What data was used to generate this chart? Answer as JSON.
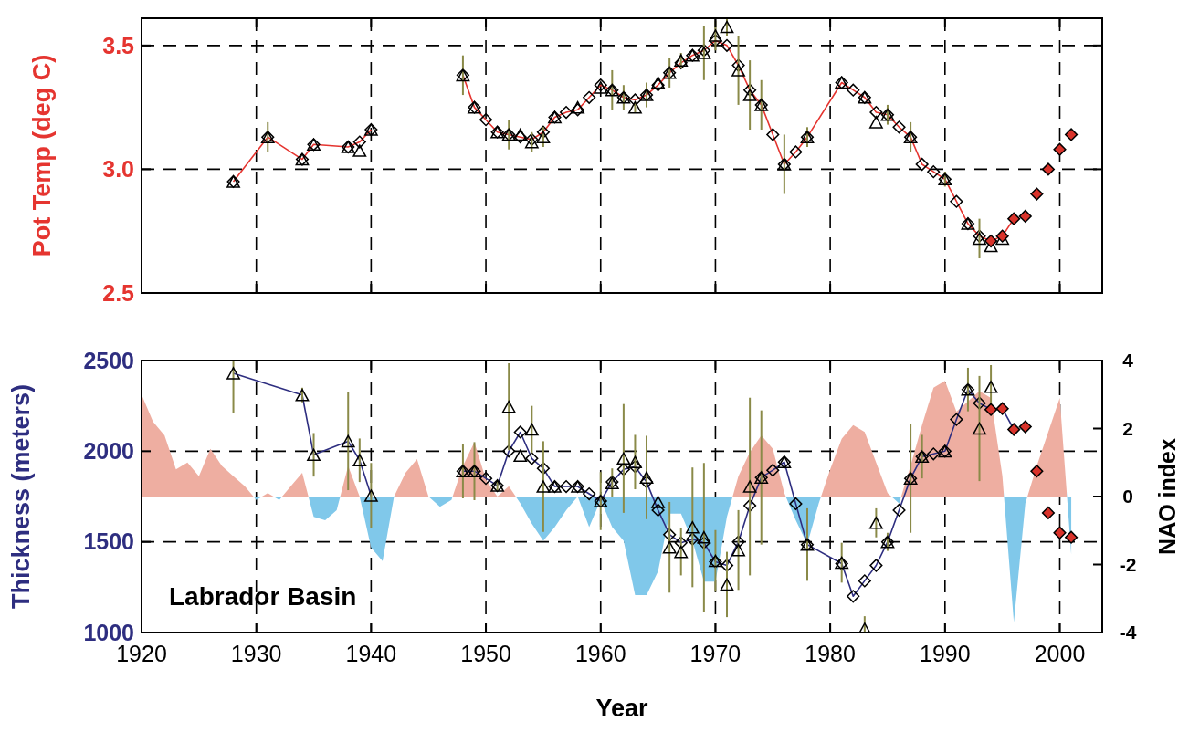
{
  "chart_data": [
    {
      "type": "line",
      "ylabel": "Pot Temp (deg C)",
      "xlim": [
        1920,
        2003.7
      ],
      "xticks": [
        1920,
        1930,
        1940,
        1950,
        1960,
        1970,
        1980,
        1990,
        2000
      ],
      "ylim": [
        2.5,
        3.61
      ],
      "yticks": [
        {
          "value": 2.5,
          "label": "2.5"
        },
        {
          "value": 3.0,
          "label": "3.0"
        },
        {
          "value": 3.5,
          "label": "3.5"
        }
      ],
      "grid": true,
      "tick_labels": "y",
      "series": [
        {
          "color": "#e53530",
          "marker": "none",
          "x": [
            1928,
            1931,
            1934,
            1935,
            1938,
            1939,
            1940,
            1944,
            1948,
            1949,
            1950,
            1951,
            1952,
            1953,
            1954,
            1955,
            1956,
            1957,
            1958,
            1959,
            1960,
            1961,
            1962,
            1963,
            1964,
            1965,
            1966,
            1967,
            1968,
            1969,
            1970,
            1971,
            1972,
            1973,
            1974,
            1975,
            1976,
            1977,
            1978,
            1981,
            1982,
            1983,
            1984,
            1985,
            1986,
            1987,
            1988,
            1989,
            1990,
            1991,
            1992,
            1993,
            1994,
            1995,
            1996
          ],
          "values": [
            2.95,
            3.13,
            3.04,
            3.1,
            3.09,
            3.11,
            3.16,
            null,
            3.38,
            3.25,
            3.2,
            3.15,
            3.14,
            3.13,
            3.12,
            3.15,
            3.21,
            3.23,
            3.24,
            3.29,
            3.34,
            3.32,
            3.29,
            3.28,
            3.3,
            3.34,
            3.39,
            3.43,
            3.46,
            3.48,
            3.52,
            3.5,
            3.42,
            3.32,
            3.26,
            3.14,
            3.02,
            3.07,
            3.13,
            3.35,
            3.32,
            3.29,
            3.23,
            3.22,
            3.17,
            3.13,
            3.02,
            2.99,
            2.96,
            2.87,
            2.78,
            2.73,
            2.71,
            2.73,
            2.8
          ]
        },
        {
          "type": "scatter",
          "color": "#000000",
          "marker": "diamond",
          "x": [
            1928,
            1931,
            1934,
            1935,
            1938,
            1939,
            1940,
            1948,
            1949,
            1950,
            1951,
            1952,
            1953,
            1954,
            1955,
            1956,
            1957,
            1958,
            1959,
            1960,
            1961,
            1962,
            1963,
            1964,
            1965,
            1966,
            1967,
            1968,
            1969,
            1970,
            1971,
            1972,
            1973,
            1974,
            1975,
            1976,
            1977,
            1978,
            1981,
            1982,
            1983,
            1984,
            1985,
            1986,
            1987,
            1988,
            1989,
            1990,
            1991,
            1992,
            1993
          ],
          "values": [
            2.95,
            3.13,
            3.04,
            3.1,
            3.09,
            3.11,
            3.16,
            3.38,
            3.25,
            3.2,
            3.15,
            3.14,
            3.13,
            3.12,
            3.15,
            3.21,
            3.23,
            3.24,
            3.29,
            3.34,
            3.32,
            3.29,
            3.28,
            3.3,
            3.34,
            3.39,
            3.43,
            3.46,
            3.48,
            3.52,
            3.5,
            3.42,
            3.32,
            3.26,
            3.14,
            3.02,
            3.07,
            3.13,
            3.35,
            3.32,
            3.29,
            3.23,
            3.22,
            3.17,
            3.13,
            3.02,
            2.99,
            2.96,
            2.87,
            2.78,
            2.73
          ]
        },
        {
          "type": "scatter",
          "color": "#000000",
          "marker": "triangle",
          "x": [
            1928,
            1931,
            1934,
            1935,
            1938,
            1939,
            1940,
            1948,
            1949,
            1951,
            1952,
            1953,
            1954,
            1955,
            1956,
            1958,
            1960,
            1961,
            1962,
            1963,
            1964,
            1965,
            1966,
            1967,
            1968,
            1969,
            1970,
            1971,
            1972,
            1973,
            1974,
            1976,
            1978,
            1981,
            1983,
            1984,
            1985,
            1987,
            1990,
            1992,
            1993,
            1994,
            1995
          ],
          "values": [
            2.95,
            3.13,
            3.04,
            3.1,
            3.09,
            3.075,
            3.16,
            3.38,
            3.25,
            3.15,
            3.14,
            3.14,
            3.11,
            3.13,
            3.21,
            3.25,
            3.33,
            3.32,
            3.29,
            3.25,
            3.3,
            3.35,
            3.39,
            3.44,
            3.46,
            3.47,
            3.54,
            3.575,
            3.4,
            3.3,
            3.26,
            3.02,
            3.13,
            3.35,
            3.29,
            3.19,
            3.22,
            3.13,
            2.96,
            2.78,
            2.72,
            2.69,
            2.72
          ],
          "errors": [
            null,
            0.06,
            null,
            null,
            null,
            null,
            null,
            0.08,
            null,
            null,
            0.06,
            null,
            0.04,
            0.04,
            null,
            null,
            null,
            0.08,
            0.05,
            0.02,
            0.05,
            null,
            0.06,
            0.03,
            null,
            0.11,
            0.06,
            0.035,
            0.14,
            0.14,
            0.1,
            0.12,
            0.04,
            null,
            null,
            null,
            0.04,
            0.06,
            0.03,
            null,
            0.08,
            null,
            null
          ]
        },
        {
          "type": "scatter",
          "color": "#d9332b",
          "marker": "diamond",
          "x": [
            1994,
            1995,
            1996,
            1997,
            1998,
            1999,
            2000,
            2001
          ],
          "values": [
            2.71,
            2.73,
            2.8,
            2.81,
            2.9,
            3.0,
            3.08,
            3.14
          ]
        }
      ]
    },
    {
      "type": "line",
      "xlabel": "Year",
      "ylabel": "Thickness (meters)",
      "y2label": "NAO index",
      "annotations": [
        "Labrador Basin"
      ],
      "xlim": [
        1920,
        2003.7
      ],
      "xticks": [
        1920,
        1930,
        1940,
        1950,
        1960,
        1970,
        1980,
        1990,
        2000
      ],
      "ylim": [
        1000,
        2500
      ],
      "yticks": [
        1000,
        1500,
        2000,
        2500
      ],
      "y2lim": [
        -4,
        4
      ],
      "y2ticks": [
        -4,
        -2,
        0,
        2,
        4
      ],
      "grid": true,
      "series": [
        {
          "type": "area",
          "axis": "y2",
          "colors": [
            "#eeaea1",
            "#eeaea1",
            "#eeaea1",
            "#eeaea1",
            "#eeaea1",
            "#eeaea1",
            "#eeaea1",
            "#eeaea1",
            "#eeaea1",
            "#eeaea1",
            "#80c8ea",
            "#eeaea1",
            "#80c8ea",
            "#eeaea1",
            "#eeaea1",
            "#80c8ea",
            "#80c8ea",
            "#80c8ea",
            "#eeaea1",
            "#eeaea1",
            "#80c8ea",
            "#80c8ea",
            "#eeaea1",
            "#eeaea1",
            "#eeaea1",
            "#eeaea1",
            "#80c8ea",
            "#80c8ea",
            "#eeaea1",
            "#eeaea1",
            "#eeaea1",
            "#eeaea1",
            "#eeaea1",
            "#80c8ea",
            "#80c8ea",
            "#80c8ea",
            "#80c8ea",
            "#80c8ea",
            "#eeaea1",
            "#80c8ea",
            "#80c8ea",
            "#80c8ea",
            "#80c8ea",
            "#80c8ea",
            "#80c8ea",
            "#80c8ea",
            "#80c8ea",
            "#80c8ea",
            "#80c8ea",
            "#80c8ea",
            "#80c8ea",
            "#80c8ea",
            "#eeaea1",
            "#eeaea1",
            "#eeaea1",
            "#eeaea1",
            "#eeaea1",
            "#80c8ea",
            "#80c8ea",
            "#80c8ea",
            "#eeaea1",
            "#eeaea1",
            "#eeaea1",
            "#eeaea1",
            "#eeaea1",
            "#eeaea1",
            "#80c8ea",
            "#eeaea1",
            "#eeaea1",
            "#eeaea1",
            "#eeaea1",
            "#eeaea1",
            "#eeaea1",
            "#eeaea1",
            "#eeaea1",
            "#eeaea1",
            "#80c8ea",
            "#80c8ea",
            "#eeaea1",
            "#eeaea1",
            "#eeaea1",
            "#80c8ea"
          ],
          "x": [
            1920,
            1921,
            1922,
            1923,
            1924,
            1925,
            1926,
            1927,
            1928,
            1929,
            1930,
            1931,
            1932,
            1933,
            1934,
            1935,
            1936,
            1937,
            1938,
            1939,
            1940,
            1941,
            1942,
            1943,
            1944,
            1945,
            1946,
            1947,
            1948,
            1949,
            1950,
            1951,
            1952,
            1953,
            1954,
            1955,
            1956,
            1957,
            1958,
            1959,
            1960,
            1961,
            1962,
            1963,
            1964,
            1965,
            1966,
            1967,
            1968,
            1969,
            1970,
            1971,
            1972,
            1973,
            1974,
            1975,
            1976,
            1977,
            1978,
            1979,
            1980,
            1981,
            1982,
            1983,
            1984,
            1985,
            1986,
            1987,
            1988,
            1989,
            1990,
            1991,
            1992,
            1993,
            1994,
            1995,
            1996,
            1997,
            1998,
            1999,
            2000,
            2001
          ],
          "values": [
            3.0,
            2.2,
            1.8,
            0.8,
            1.0,
            0.6,
            1.4,
            0.9,
            0.6,
            0.3,
            -0.1,
            0.1,
            -0.1,
            0.3,
            0.7,
            -0.6,
            -0.7,
            -0.4,
            0.9,
            0,
            -1.5,
            -1.9,
            0,
            0.7,
            1.1,
            0,
            -0.3,
            -0.1,
            0.9,
            1.6,
            0.5,
            0,
            0.3,
            -0.2,
            -0.8,
            -1.3,
            -0.9,
            -0.4,
            0,
            -0.9,
            -0.1,
            -0.9,
            -1.3,
            -2.9,
            -2.9,
            -2.2,
            -0.5,
            -0.5,
            -1.3,
            -2.5,
            -2.5,
            -0.6,
            0.6,
            1.3,
            1.8,
            1.4,
            0.1,
            -0.7,
            -1.4,
            -0.2,
            0.8,
            1.7,
            2.1,
            1.9,
            1.0,
            0.1,
            -0.2,
            0.9,
            2.1,
            3.2,
            3.4,
            2.5,
            2.8,
            3.1,
            2.9,
            0.6,
            -3.7,
            -0.2,
            0.9,
            1.9,
            2.9,
            -1.7
          ]
        },
        {
          "color": "#2e2e80",
          "marker": "none",
          "x": [
            1928,
            1934,
            1935,
            1938,
            1939,
            1940,
            1944,
            1948,
            1949,
            1950,
            1951,
            1952,
            1953,
            1954,
            1955,
            1956,
            1957,
            1958,
            1959,
            1960,
            1961,
            1962,
            1963,
            1964,
            1965,
            1966,
            1967,
            1968,
            1969,
            1970,
            1971,
            1972,
            1973,
            1974,
            1975,
            1976,
            1977,
            1978,
            1981,
            1982,
            1983,
            1984,
            1985,
            1986,
            1987,
            1988,
            1989,
            1990,
            1991,
            1992,
            1993,
            1994,
            1995,
            1996
          ],
          "values": [
            2430,
            2310,
            1980,
            2055,
            1950,
            1755,
            null,
            1890,
            1890,
            1850,
            1810,
            2000,
            2105,
            1960,
            1905,
            1805,
            1805,
            1805,
            1765,
            1725,
            1830,
            1900,
            1915,
            1830,
            1675,
            1540,
            1495,
            1515,
            1495,
            1390,
            1370,
            1500,
            1700,
            1855,
            1895,
            1940,
            1710,
            1485,
            1380,
            1200,
            1285,
            1370,
            1500,
            1675,
            1850,
            1970,
            1985,
            2000,
            2175,
            2340,
            2265,
            2230,
            2235,
            2120
          ]
        },
        {
          "type": "scatter",
          "color": "#000000",
          "marker": "diamond",
          "x": [
            1948,
            1949,
            1950,
            1951,
            1952,
            1953,
            1954,
            1955,
            1956,
            1957,
            1958,
            1959,
            1960,
            1961,
            1962,
            1963,
            1964,
            1965,
            1966,
            1967,
            1968,
            1969,
            1970,
            1971,
            1972,
            1973,
            1974,
            1975,
            1976,
            1977,
            1978,
            1981,
            1982,
            1983,
            1984,
            1985,
            1986,
            1987,
            1988,
            1989,
            1990,
            1991,
            1992,
            1993
          ],
          "values": [
            1890,
            1890,
            1850,
            1810,
            2000,
            2105,
            1960,
            1905,
            1805,
            1805,
            1805,
            1765,
            1725,
            1830,
            1900,
            1915,
            1830,
            1675,
            1540,
            1495,
            1515,
            1495,
            1390,
            1370,
            1500,
            1700,
            1855,
            1895,
            1940,
            1710,
            1485,
            1380,
            1200,
            1285,
            1370,
            1500,
            1675,
            1850,
            1970,
            1985,
            2000,
            2175,
            2340,
            2265
          ]
        },
        {
          "type": "scatter",
          "color": "#000000",
          "marker": "triangle",
          "x": [
            1928,
            1934,
            1935,
            1938,
            1939,
            1940,
            1948,
            1949,
            1951,
            1952,
            1953,
            1954,
            1955,
            1956,
            1958,
            1960,
            1961,
            1962,
            1963,
            1964,
            1965,
            1966,
            1967,
            1968,
            1969,
            1970,
            1971,
            1972,
            1973,
            1974,
            1976,
            1978,
            1981,
            1983,
            1984,
            1985,
            1987,
            1988,
            1990,
            1992,
            1993,
            1994
          ],
          "values": [
            2430,
            2310,
            1980,
            2055,
            1950,
            1755,
            1890,
            1890,
            1810,
            2245,
            1975,
            2120,
            1805,
            1805,
            1805,
            1725,
            1825,
            1960,
            1940,
            1855,
            1720,
            1470,
            1445,
            1580,
            1525,
            1395,
            1265,
            1455,
            1805,
            1855,
            1940,
            1485,
            1385,
            1020,
            1605,
            1500,
            1850,
            1970,
            2000,
            2340,
            2125,
            2355
          ],
          "errors": [
            [
              2210,
              2500
            ],
            40,
            120,
            270,
            120,
            180,
            150,
            160,
            30,
            240,
            null,
            130,
            250,
            null,
            null,
            160,
            80,
            300,
            150,
            230,
            null,
            250,
            130,
            330,
            410,
            170,
            180,
            220,
            490,
            370,
            null,
            200,
            110,
            [
              1000,
              1090
            ],
            80,
            50,
            300,
            120,
            null,
            120,
            290,
            120
          ]
        },
        {
          "type": "scatter",
          "color": "#d9332b",
          "marker": "diamond",
          "x": [
            1994,
            1995,
            1996,
            1997,
            1998,
            1999,
            2000,
            2001
          ],
          "values": [
            2230,
            2235,
            2120,
            2135,
            1890,
            1660,
            1550,
            1525
          ]
        }
      ]
    }
  ]
}
